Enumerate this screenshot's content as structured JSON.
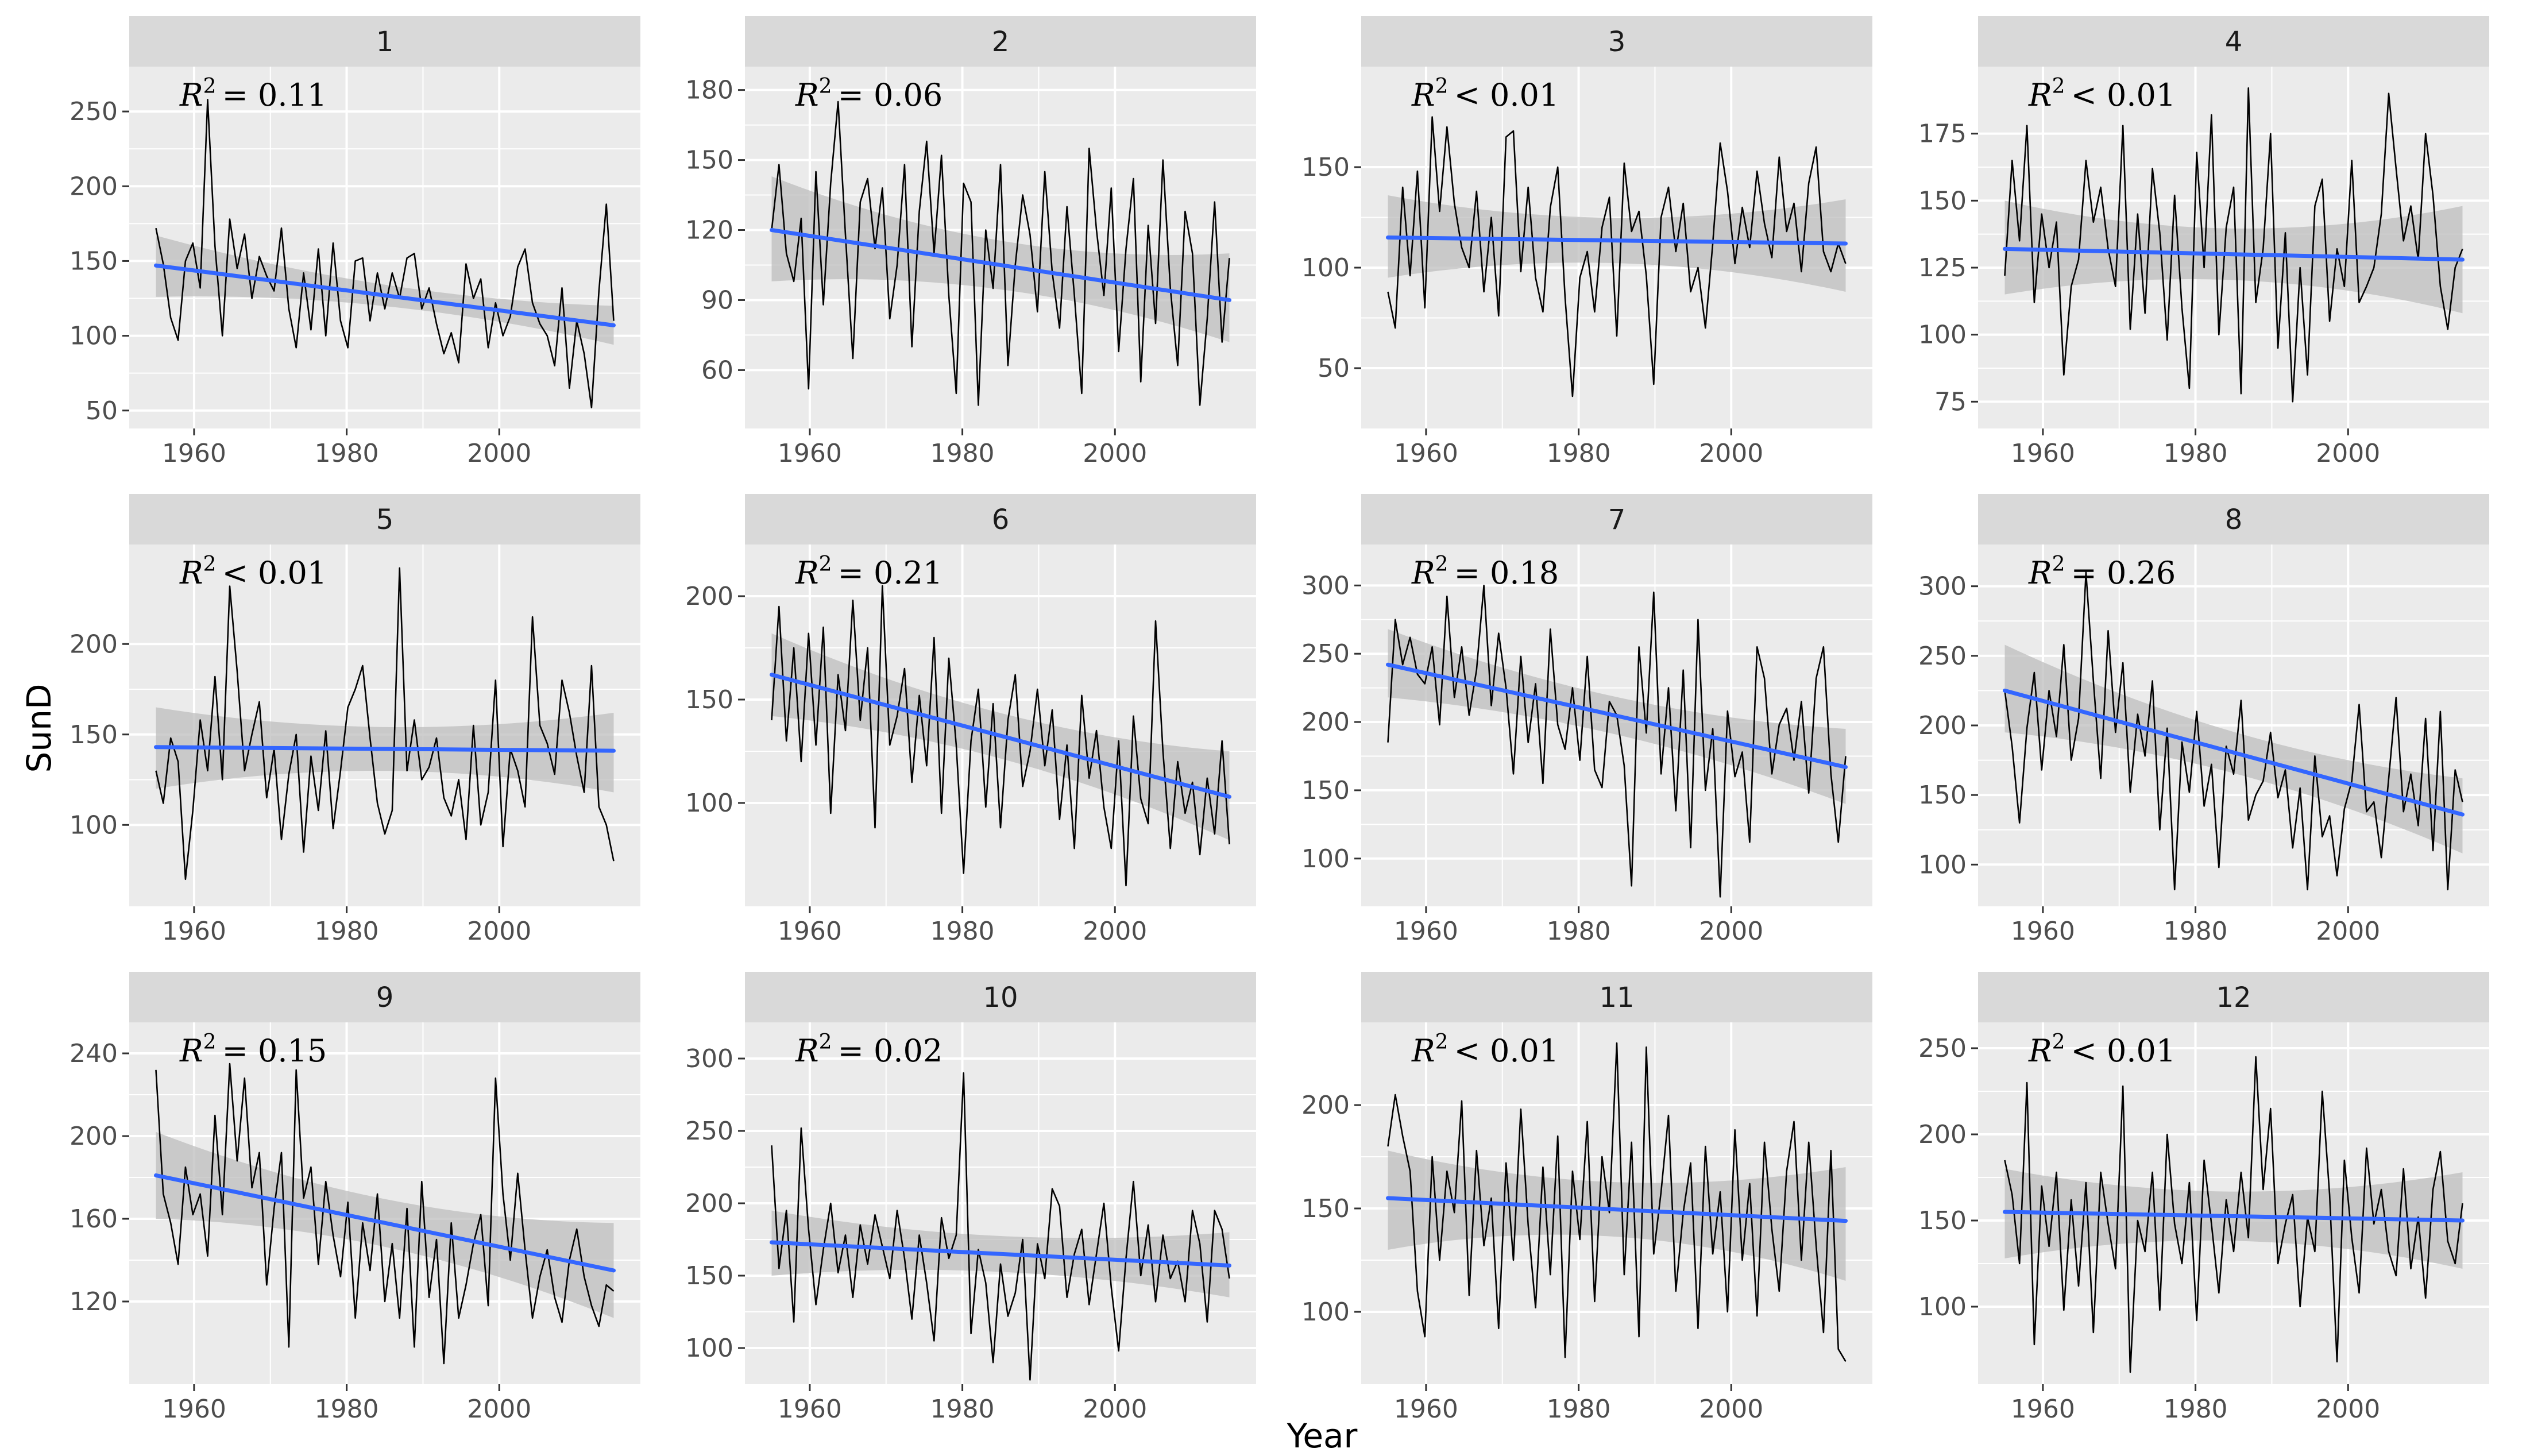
{
  "figure": {
    "xlabel": "Year",
    "ylabel": "SunD",
    "colors": {
      "panel_bg": "#ebebeb",
      "strip_bg": "#d9d9d9",
      "grid": "#ffffff",
      "series": "#000000",
      "trend": "#3366ff",
      "ribbon": "#bdbdbd"
    }
  },
  "chart_data": [
    {
      "type": "line",
      "title": "1",
      "r2": "R² = 0.11",
      "r2_rel": "= 0.11",
      "x_range": [
        1955,
        2015
      ],
      "xlim": [
        1951.5,
        2018.5
      ],
      "x_ticks": [
        "1960",
        "1980",
        "2000"
      ],
      "ylim": [
        38,
        280
      ],
      "y_ticks": [
        "50",
        "100",
        "150",
        "200",
        "250"
      ],
      "values": [
        172,
        148,
        112,
        97,
        150,
        162,
        132,
        258,
        160,
        100,
        178,
        145,
        168,
        125,
        153,
        140,
        130,
        172,
        118,
        92,
        142,
        104,
        158,
        100,
        162,
        110,
        92,
        150,
        152,
        110,
        142,
        118,
        142,
        125,
        152,
        155,
        118,
        132,
        108,
        88,
        102,
        82,
        148,
        125,
        138,
        92,
        122,
        100,
        113,
        146,
        158,
        122,
        108,
        100,
        80,
        132,
        65,
        110,
        88,
        52,
        130,
        188,
        110
      ],
      "trend": [
        147,
        107
      ],
      "band": [
        [
          126,
          167
        ],
        [
          94,
          120
        ]
      ]
    },
    {
      "type": "line",
      "title": "2",
      "r2": "R² = 0.06",
      "r2_rel": "= 0.06",
      "x_range": [
        1955,
        2015
      ],
      "xlim": [
        1951.5,
        2018.5
      ],
      "x_ticks": [
        "1960",
        "1980",
        "2000"
      ],
      "ylim": [
        35,
        190
      ],
      "y_ticks": [
        "60",
        "90",
        "120",
        "150",
        "180"
      ],
      "values": [
        120,
        148,
        110,
        98,
        125,
        52,
        145,
        88,
        140,
        175,
        118,
        65,
        132,
        142,
        112,
        138,
        82,
        105,
        148,
        70,
        128,
        158,
        110,
        152,
        92,
        50,
        140,
        132,
        45,
        120,
        95,
        148,
        62,
        105,
        135,
        118,
        85,
        145,
        102,
        78,
        130,
        92,
        50,
        155,
        120,
        92,
        138,
        68,
        112,
        142,
        55,
        122,
        80,
        150,
        95,
        62,
        128,
        110,
        45,
        82,
        132,
        72,
        108
      ],
      "trend": [
        120,
        90
      ],
      "band": [
        [
          98,
          143
        ],
        [
          72,
          110
        ]
      ]
    },
    {
      "type": "line",
      "title": "3",
      "r2": "R² < 0.01",
      "r2_rel": "< 0.01",
      "x_range": [
        1955,
        2015
      ],
      "xlim": [
        1951.5,
        2018.5
      ],
      "x_ticks": [
        "1960",
        "1980",
        "2000"
      ],
      "ylim": [
        20,
        200
      ],
      "y_ticks": [
        "50",
        "100",
        "150"
      ],
      "values": [
        88,
        70,
        140,
        96,
        148,
        80,
        175,
        128,
        170,
        132,
        110,
        100,
        138,
        88,
        125,
        76,
        165,
        168,
        98,
        140,
        95,
        78,
        130,
        150,
        85,
        36,
        95,
        108,
        78,
        120,
        135,
        66,
        152,
        118,
        128,
        96,
        42,
        125,
        140,
        108,
        132,
        88,
        100,
        70,
        112,
        162,
        138,
        102,
        130,
        110,
        148,
        122,
        105,
        155,
        118,
        132,
        98,
        142,
        160,
        108,
        98,
        112,
        102
      ],
      "trend": [
        115,
        112
      ],
      "band": [
        [
          95,
          136
        ],
        [
          88,
          134
        ]
      ]
    },
    {
      "type": "line",
      "title": "4",
      "r2": "R² < 0.01",
      "r2_rel": "< 0.01",
      "x_range": [
        1955,
        2015
      ],
      "xlim": [
        1951.5,
        2018.5
      ],
      "x_ticks": [
        "1960",
        "1980",
        "2000"
      ],
      "ylim": [
        65,
        200
      ],
      "y_ticks": [
        "75",
        "100",
        "125",
        "150",
        "175"
      ],
      "values": [
        122,
        165,
        135,
        178,
        112,
        145,
        125,
        142,
        85,
        118,
        128,
        165,
        142,
        155,
        132,
        118,
        178,
        102,
        145,
        108,
        162,
        138,
        98,
        152,
        110,
        80,
        168,
        125,
        182,
        100,
        140,
        155,
        78,
        192,
        112,
        132,
        175,
        95,
        138,
        75,
        125,
        85,
        148,
        158,
        105,
        132,
        118,
        165,
        112,
        118,
        125,
        145,
        190,
        162,
        135,
        148,
        128,
        175,
        152,
        118,
        102,
        125,
        132
      ],
      "trend": [
        132,
        128
      ],
      "band": [
        [
          115,
          150
        ],
        [
          108,
          148
        ]
      ]
    },
    {
      "type": "line",
      "title": "5",
      "r2": "R² < 0.01",
      "r2_rel": "< 0.01",
      "x_range": [
        1955,
        2015
      ],
      "xlim": [
        1951.5,
        2018.5
      ],
      "x_ticks": [
        "1960",
        "1980",
        "2000"
      ],
      "ylim": [
        55,
        255
      ],
      "y_ticks": [
        "100",
        "150",
        "200"
      ],
      "values": [
        130,
        112,
        148,
        135,
        70,
        108,
        158,
        130,
        182,
        125,
        232,
        185,
        130,
        150,
        168,
        115,
        142,
        92,
        128,
        150,
        85,
        138,
        108,
        152,
        98,
        130,
        165,
        175,
        188,
        148,
        112,
        95,
        108,
        242,
        130,
        158,
        125,
        132,
        148,
        115,
        105,
        125,
        92,
        155,
        100,
        118,
        180,
        88,
        142,
        130,
        110,
        215,
        155,
        145,
        128,
        180,
        162,
        138,
        118,
        188,
        110,
        100,
        80
      ],
      "trend": [
        143,
        141
      ],
      "band": [
        [
          120,
          165
        ],
        [
          118,
          162
        ]
      ]
    },
    {
      "type": "line",
      "title": "6",
      "r2": "R² = 0.21",
      "r2_rel": "= 0.21",
      "x_range": [
        1955,
        2015
      ],
      "xlim": [
        1951.5,
        2018.5
      ],
      "x_ticks": [
        "1960",
        "1980",
        "2000"
      ],
      "ylim": [
        50,
        225
      ],
      "y_ticks": [
        "100",
        "150",
        "200"
      ],
      "values": [
        140,
        195,
        130,
        175,
        120,
        182,
        128,
        185,
        95,
        162,
        135,
        198,
        140,
        175,
        88,
        205,
        128,
        142,
        165,
        110,
        152,
        118,
        180,
        95,
        170,
        128,
        66,
        130,
        155,
        98,
        148,
        88,
        140,
        162,
        108,
        125,
        155,
        118,
        145,
        92,
        128,
        78,
        152,
        112,
        135,
        98,
        78,
        130,
        60,
        142,
        102,
        90,
        188,
        125,
        78,
        120,
        95,
        110,
        75,
        112,
        85,
        130,
        80
      ],
      "trend": [
        162,
        103
      ],
      "band": [
        [
          142,
          182
        ],
        [
          82,
          125
        ]
      ]
    },
    {
      "type": "line",
      "title": "7",
      "r2": "R² = 0.18",
      "r2_rel": "= 0.18",
      "x_range": [
        1955,
        2015
      ],
      "xlim": [
        1951.5,
        2018.5
      ],
      "x_ticks": [
        "1960",
        "1980",
        "2000"
      ],
      "ylim": [
        65,
        330
      ],
      "y_ticks": [
        "100",
        "150",
        "200",
        "250",
        "300"
      ],
      "values": [
        185,
        275,
        242,
        262,
        235,
        228,
        255,
        198,
        292,
        218,
        255,
        205,
        238,
        300,
        212,
        265,
        225,
        162,
        248,
        185,
        228,
        155,
        268,
        198,
        180,
        225,
        172,
        248,
        165,
        152,
        215,
        205,
        168,
        80,
        255,
        192,
        295,
        162,
        225,
        135,
        238,
        108,
        275,
        150,
        195,
        72,
        208,
        160,
        178,
        112,
        255,
        232,
        162,
        198,
        210,
        172,
        215,
        148,
        232,
        255,
        162,
        112,
        175
      ],
      "trend": [
        242,
        167
      ],
      "band": [
        [
          218,
          268
        ],
        [
          140,
          195
        ]
      ]
    },
    {
      "type": "line",
      "title": "8",
      "r2": "R² = 0.26",
      "r2_rel": "= 0.26",
      "x_range": [
        1955,
        2015
      ],
      "xlim": [
        1951.5,
        2018.5
      ],
      "x_ticks": [
        "1960",
        "1980",
        "2000"
      ],
      "ylim": [
        70,
        330
      ],
      "y_ticks": [
        "100",
        "150",
        "200",
        "250",
        "300"
      ],
      "values": [
        225,
        185,
        130,
        198,
        238,
        168,
        225,
        192,
        258,
        175,
        205,
        310,
        232,
        162,
        268,
        195,
        245,
        152,
        208,
        178,
        232,
        125,
        198,
        82,
        188,
        152,
        210,
        142,
        172,
        98,
        185,
        165,
        218,
        132,
        150,
        160,
        195,
        148,
        168,
        112,
        155,
        82,
        178,
        120,
        135,
        92,
        140,
        160,
        215,
        138,
        145,
        105,
        162,
        220,
        138,
        165,
        128,
        205,
        110,
        210,
        82,
        168,
        145
      ],
      "trend": [
        225,
        136
      ],
      "band": [
        [
          195,
          258
        ],
        [
          108,
          162
        ]
      ]
    },
    {
      "type": "line",
      "title": "9",
      "r2": "R² = 0.15",
      "r2_rel": "= 0.15",
      "x_range": [
        1955,
        2015
      ],
      "xlim": [
        1951.5,
        2018.5
      ],
      "x_ticks": [
        "1960",
        "1980",
        "2000"
      ],
      "ylim": [
        80,
        255
      ],
      "y_ticks": [
        "120",
        "160",
        "200",
        "240"
      ],
      "values": [
        232,
        172,
        158,
        138,
        185,
        162,
        172,
        142,
        210,
        162,
        235,
        188,
        228,
        175,
        192,
        128,
        165,
        192,
        98,
        232,
        170,
        185,
        138,
        178,
        152,
        132,
        168,
        112,
        158,
        135,
        172,
        120,
        148,
        112,
        165,
        98,
        178,
        122,
        150,
        90,
        158,
        112,
        128,
        148,
        162,
        118,
        228,
        172,
        140,
        182,
        145,
        112,
        132,
        145,
        122,
        110,
        140,
        155,
        132,
        118,
        108,
        128,
        125
      ],
      "trend": [
        181,
        135
      ],
      "band": [
        [
          160,
          202
        ],
        [
          112,
          158
        ]
      ]
    },
    {
      "type": "line",
      "title": "10",
      "r2": "R² = 0.02",
      "r2_rel": "= 0.02",
      "x_range": [
        1955,
        2015
      ],
      "xlim": [
        1951.5,
        2018.5
      ],
      "x_ticks": [
        "1960",
        "1980",
        "2000"
      ],
      "ylim": [
        75,
        325
      ],
      "y_ticks": [
        "100",
        "150",
        "200",
        "250",
        "300"
      ],
      "values": [
        240,
        155,
        195,
        118,
        252,
        182,
        130,
        168,
        200,
        152,
        178,
        135,
        185,
        158,
        192,
        170,
        148,
        195,
        162,
        120,
        178,
        145,
        105,
        190,
        162,
        178,
        290,
        110,
        168,
        145,
        90,
        158,
        122,
        138,
        175,
        78,
        172,
        148,
        210,
        198,
        135,
        165,
        182,
        130,
        165,
        200,
        142,
        98,
        162,
        215,
        150,
        185,
        132,
        178,
        148,
        160,
        132,
        195,
        172,
        118,
        195,
        182,
        148
      ],
      "trend": [
        173,
        157
      ],
      "band": [
        [
          150,
          195
        ],
        [
          135,
          180
        ]
      ]
    },
    {
      "type": "line",
      "title": "11",
      "r2": "R² < 0.01",
      "r2_rel": "< 0.01",
      "x_range": [
        1955,
        2015
      ],
      "xlim": [
        1951.5,
        2018.5
      ],
      "x_ticks": [
        "1960",
        "1980",
        "2000"
      ],
      "ylim": [
        65,
        240
      ],
      "y_ticks": [
        "100",
        "150",
        "200"
      ],
      "values": [
        180,
        205,
        185,
        168,
        110,
        88,
        175,
        125,
        168,
        148,
        202,
        108,
        178,
        132,
        155,
        92,
        172,
        125,
        198,
        142,
        102,
        170,
        118,
        185,
        78,
        168,
        135,
        192,
        105,
        175,
        148,
        230,
        118,
        182,
        88,
        228,
        128,
        158,
        195,
        110,
        148,
        172,
        92,
        180,
        128,
        158,
        100,
        188,
        125,
        162,
        98,
        182,
        140,
        110,
        168,
        192,
        125,
        182,
        132,
        90,
        178,
        82,
        76
      ],
      "trend": [
        155,
        144
      ],
      "band": [
        [
          130,
          178
        ],
        [
          115,
          170
        ]
      ]
    },
    {
      "type": "line",
      "title": "12",
      "r2": "R² < 0.01",
      "r2_rel": "< 0.01",
      "x_range": [
        1955,
        2015
      ],
      "xlim": [
        1951.5,
        2018.5
      ],
      "x_ticks": [
        "1960",
        "1980",
        "2000"
      ],
      "ylim": [
        55,
        265
      ],
      "y_ticks": [
        "100",
        "150",
        "200",
        "250"
      ],
      "values": [
        185,
        165,
        125,
        230,
        78,
        170,
        135,
        178,
        98,
        162,
        112,
        172,
        85,
        178,
        148,
        122,
        228,
        62,
        150,
        132,
        178,
        98,
        200,
        148,
        125,
        172,
        92,
        185,
        148,
        108,
        162,
        132,
        178,
        140,
        245,
        168,
        215,
        125,
        148,
        165,
        100,
        152,
        132,
        225,
        165,
        68,
        185,
        140,
        108,
        192,
        148,
        168,
        132,
        118,
        180,
        122,
        152,
        105,
        168,
        190,
        138,
        125,
        160
      ],
      "trend": [
        155,
        150
      ],
      "band": [
        [
          128,
          180
        ],
        [
          122,
          178
        ]
      ]
    }
  ]
}
